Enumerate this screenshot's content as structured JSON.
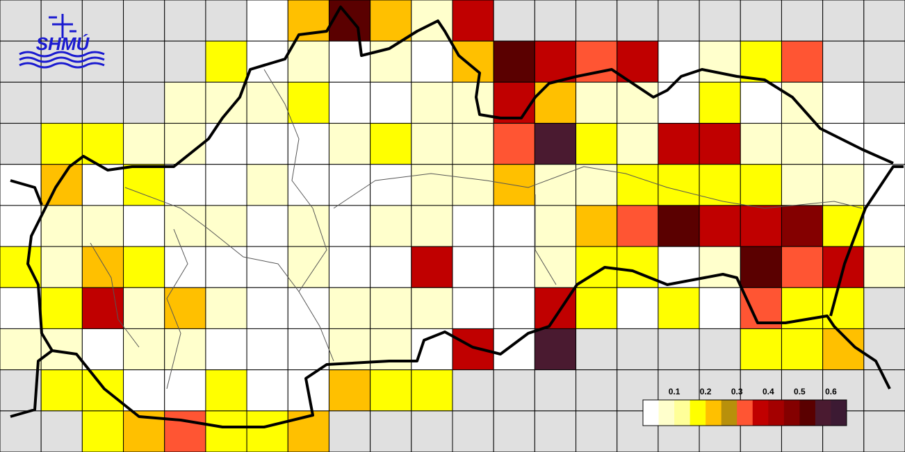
{
  "logo": "SHMÚ",
  "legend": {
    "range": [
      0,
      0.65
    ],
    "ticks": [
      0.1,
      0.2,
      0.3,
      0.4,
      0.5,
      0.6
    ],
    "colors": [
      "#ffffff",
      "#ffffcc",
      "#ffff99",
      "#ffff00",
      "#ffc000",
      "#b8900b",
      "#ff5533",
      "#c00000",
      "#a40000",
      "#840000",
      "#5a0000",
      "#4a1a30",
      "#3c1a33"
    ]
  },
  "grid": [
    [
      null,
      null,
      null,
      null,
      null,
      null,
      0.025,
      0.225,
      0.525,
      0.225,
      0.075,
      0.375,
      null,
      null,
      null,
      null,
      null,
      null,
      null,
      null,
      null,
      null
    ],
    [
      null,
      null,
      null,
      null,
      null,
      0.175,
      0.025,
      0.075,
      0.025,
      0.075,
      0.025,
      0.225,
      0.525,
      0.375,
      0.325,
      0.375,
      0.025,
      0.075,
      0.175,
      0.325,
      null,
      null
    ],
    [
      null,
      null,
      null,
      null,
      0.075,
      0.075,
      0.075,
      0.175,
      0.025,
      0.025,
      0.075,
      0.075,
      0.375,
      0.225,
      0.075,
      0.075,
      0.025,
      0.175,
      0.025,
      0.075,
      0.025,
      null
    ],
    [
      null,
      0.175,
      0.175,
      0.075,
      0.075,
      0.025,
      0.025,
      0.025,
      0.075,
      0.175,
      0.075,
      0.075,
      0.325,
      0.575,
      0.175,
      0.075,
      0.375,
      0.375,
      0.075,
      0.075,
      0.025,
      0.025
    ],
    [
      0.025,
      0.225,
      0.025,
      0.175,
      0.025,
      0.025,
      0.075,
      0.025,
      0.025,
      0.025,
      0.075,
      0.075,
      0.225,
      0.075,
      0.075,
      0.175,
      0.175,
      0.175,
      0.175,
      0.075,
      0.075,
      0.025
    ],
    [
      0.025,
      0.075,
      0.075,
      0.025,
      0.075,
      0.075,
      0.025,
      0.075,
      0.025,
      0.075,
      0.075,
      0.025,
      0.025,
      0.075,
      0.225,
      0.325,
      0.525,
      0.375,
      0.375,
      0.475,
      0.175,
      0.025
    ],
    [
      0.175,
      0.075,
      0.225,
      0.175,
      0.025,
      0.025,
      0.025,
      0.075,
      0.025,
      0.025,
      0.375,
      0.025,
      0.025,
      0.075,
      0.175,
      0.175,
      0.025,
      0.075,
      0.525,
      0.325,
      0.375,
      0.075
    ],
    [
      0.025,
      0.175,
      0.375,
      0.075,
      0.225,
      0.075,
      0.025,
      0.025,
      0.075,
      0.075,
      0.075,
      0.025,
      0.025,
      0.375,
      0.175,
      0.025,
      0.175,
      0.025,
      0.325,
      0.175,
      0.175,
      null
    ],
    [
      0.075,
      0.075,
      0.025,
      0.075,
      0.075,
      0.025,
      0.025,
      0.025,
      0.075,
      0.075,
      0.025,
      0.375,
      0.025,
      0.575,
      null,
      null,
      null,
      null,
      0.175,
      0.175,
      0.225,
      null
    ],
    [
      null,
      0.175,
      0.175,
      0.025,
      0.025,
      0.175,
      0.025,
      0.025,
      0.225,
      0.175,
      0.175,
      null,
      null,
      null,
      null,
      null,
      null,
      null,
      null,
      null,
      null,
      null
    ],
    [
      null,
      null,
      0.175,
      0.225,
      0.325,
      0.175,
      0.175,
      0.225,
      null,
      null,
      null,
      null,
      null,
      null,
      null,
      null,
      null,
      null,
      null,
      null,
      null,
      null
    ]
  ]
}
